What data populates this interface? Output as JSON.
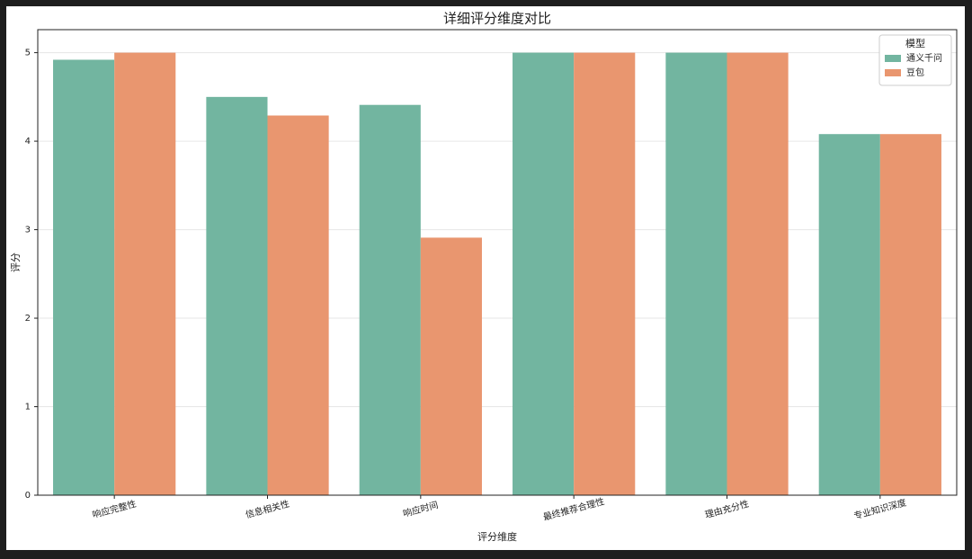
{
  "chart_data": {
    "type": "bar",
    "title": "详细评分维度对比",
    "x_label": "评分维度",
    "y_label": "评分",
    "categories": [
      "响应完整性",
      "信息相关性",
      "响应时间",
      "最终推荐合理性",
      "理由充分性",
      "专业知识深度"
    ],
    "series": [
      {
        "name": "通义千问",
        "color": "#72b5a0",
        "values": [
          4.92,
          4.5,
          4.41,
          5,
          5,
          4.08
        ]
      },
      {
        "name": "豆包",
        "color": "#e9966f",
        "values": [
          5,
          4.29,
          2.91,
          5,
          5,
          4.08
        ]
      }
    ],
    "legend_title": "模型",
    "legend": "upper right",
    "ylim": [
      0,
      5.26
    ],
    "yticks": [
      0,
      1,
      2,
      3,
      4,
      5
    ],
    "grid": true
  }
}
